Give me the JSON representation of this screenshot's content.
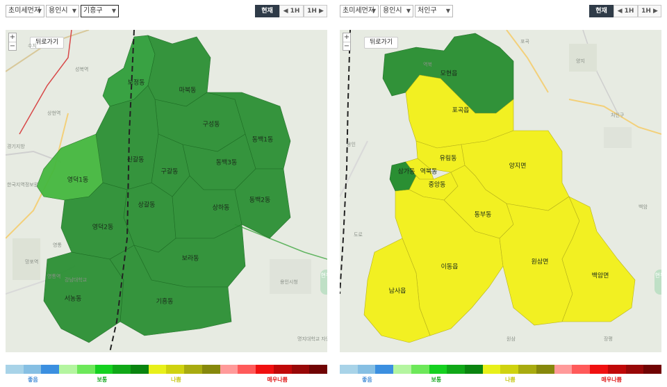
{
  "left": {
    "selects": [
      {
        "value": "초미세먼지"
      },
      {
        "value": "용인시"
      },
      {
        "value": "기흥구"
      }
    ],
    "time_buttons": {
      "now": "현재",
      "prev": "◀ 1H",
      "next": "1H ▶"
    },
    "back_label": "뒤로가기",
    "zoom": {
      "plus": "+",
      "minus": "−"
    },
    "side_button": "현위",
    "districts": [
      {
        "name": "보정동",
        "level": "보통",
        "color": "#2f9e3a"
      },
      {
        "name": "마북동",
        "level": "보통",
        "color": "#2a8f33"
      },
      {
        "name": "구성동",
        "level": "보통",
        "color": "#2a8f33"
      },
      {
        "name": "동백1동",
        "level": "보통",
        "color": "#2a8f33"
      },
      {
        "name": "신갈동",
        "level": "보통",
        "color": "#2a8f33"
      },
      {
        "name": "구갈동",
        "level": "보통",
        "color": "#2a8f33"
      },
      {
        "name": "동백3동",
        "level": "보통",
        "color": "#2a8f33"
      },
      {
        "name": "영덕1동",
        "level": "보통",
        "color": "#45b83f"
      },
      {
        "name": "상갈동",
        "level": "보통",
        "color": "#2a8f33"
      },
      {
        "name": "상하동",
        "level": "보통",
        "color": "#2a8f33"
      },
      {
        "name": "동백2동",
        "level": "보통",
        "color": "#2a8f33"
      },
      {
        "name": "영덕2동",
        "level": "보통",
        "color": "#2a8f33"
      },
      {
        "name": "보라동",
        "level": "보통",
        "color": "#2a8f33"
      },
      {
        "name": "서농동",
        "level": "보통",
        "color": "#2a8f33"
      },
      {
        "name": "기흥동",
        "level": "보통",
        "color": "#2a8f33"
      }
    ],
    "basemap_labels": [
      "수지",
      "성복역",
      "상현역",
      "경기지방",
      "한국지역정보원",
      "영통",
      "망포역",
      "영통역",
      "용인시청",
      "명지대학교 자연캠퍼스",
      "강남대학교"
    ]
  },
  "right": {
    "selects": [
      {
        "value": "초미세먼지"
      },
      {
        "value": "용인시"
      },
      {
        "value": "처인구"
      }
    ],
    "time_buttons": {
      "now": "현재",
      "prev": "◀ 1H",
      "next": "1H ▶"
    },
    "back_label": "뒤로가기",
    "zoom": {
      "plus": "+",
      "minus": "−"
    },
    "side_button": "현위",
    "districts": [
      {
        "name": "모현읍",
        "level": "보통",
        "color": "#2a8f33"
      },
      {
        "name": "포곡읍",
        "level": "나쁨",
        "color": "#f2f022"
      },
      {
        "name": "유림동",
        "level": "나쁨",
        "color": "#f2f022"
      },
      {
        "name": "양지면",
        "level": "나쁨",
        "color": "#f2f022"
      },
      {
        "name": "삼가동",
        "level": "보통",
        "color": "#2a8f33"
      },
      {
        "name": "역북동",
        "level": "나쁨",
        "color": "#f2f022"
      },
      {
        "name": "중앙동",
        "level": "나쁨",
        "color": "#f2f022"
      },
      {
        "name": "동부동",
        "level": "나쁨",
        "color": "#f2f022"
      },
      {
        "name": "이동읍",
        "level": "나쁨",
        "color": "#f2f022"
      },
      {
        "name": "원삼면",
        "level": "나쁨",
        "color": "#f2f022"
      },
      {
        "name": "백암면",
        "level": "나쁨",
        "color": "#f2f022"
      },
      {
        "name": "남사읍",
        "level": "나쁨",
        "color": "#f2f022"
      }
    ],
    "basemap_labels": [
      "포곡",
      "역북",
      "처인구",
      "용인",
      "양지",
      "원삼",
      "백암",
      "장평",
      "도로"
    ]
  },
  "scale": {
    "colors": [
      "#a8d3e8",
      "#86bfe3",
      "#3b8fe0",
      "#b4f5a0",
      "#6de85a",
      "#15d120",
      "#10a818",
      "#0a8410",
      "#e8f01a",
      "#cfd20f",
      "#a8ab10",
      "#86880c",
      "#ff9a9a",
      "#ff5a5a",
      "#f01010",
      "#c00808",
      "#980808",
      "#700404"
    ],
    "labels": [
      {
        "text": "좋음",
        "color": "#4a90d8",
        "pos": 0.085
      },
      {
        "text": "보통",
        "color": "#16a820",
        "pos": 0.3
      },
      {
        "text": "나쁨",
        "color": "#c8c818",
        "pos": 0.53
      },
      {
        "text": "매우나쁨",
        "color": "#e01818",
        "pos": 0.845
      }
    ]
  }
}
